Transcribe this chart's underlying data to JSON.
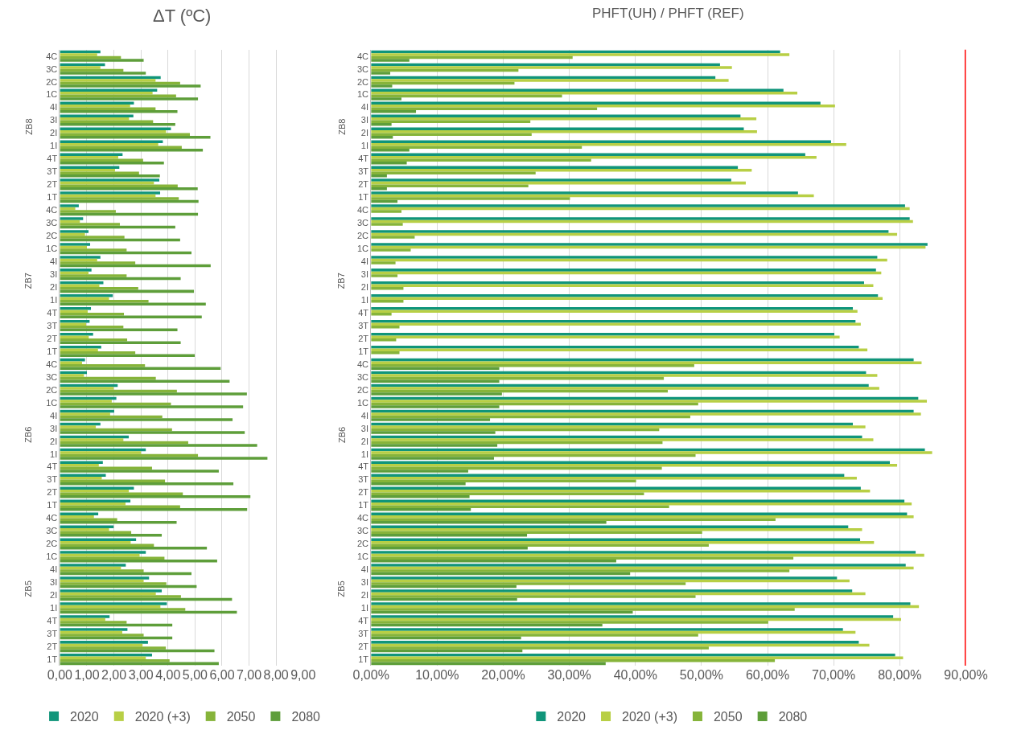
{
  "chart_data": [
    {
      "type": "bar",
      "orientation": "horizontal",
      "title": "ΔT (ºC)",
      "categories": [
        "4C",
        "3C",
        "2C",
        "1C",
        "4I",
        "3I",
        "2I",
        "1I",
        "4T",
        "3T",
        "2T",
        "1T",
        "4C",
        "3C",
        "2C",
        "1C",
        "4I",
        "3I",
        "2I",
        "1I",
        "4T",
        "3T",
        "2T",
        "1T",
        "4C",
        "3C",
        "2C",
        "1C",
        "4I",
        "3I",
        "2I",
        "1I",
        "4T",
        "3T",
        "2T",
        "1T",
        "4C",
        "3C",
        "2C",
        "1C",
        "4I",
        "3I",
        "2I",
        "1I",
        "4T",
        "3T",
        "2T",
        "1T"
      ],
      "annotations": [
        "ZB8",
        "ZB7",
        "ZB6",
        "ZB5"
      ],
      "series": [
        {
          "name": "2020",
          "color": "#10957a",
          "values": [
            1.5,
            1.67,
            3.73,
            3.6,
            2.74,
            2.72,
            4.11,
            3.81,
            2.32,
            2.2,
            3.68,
            3.71,
            0.7,
            0.86,
            1.06,
            1.12,
            1.5,
            1.17,
            1.61,
            1.96,
            1.15,
            1.1,
            1.23,
            1.53,
            0.93,
            1.0,
            2.14,
            2.09,
            2.01,
            1.5,
            2.55,
            3.18,
            1.59,
            1.7,
            2.74,
            2.61,
            1.42,
            1.99,
            2.82,
            3.18,
            2.44,
            3.3,
            3.77,
            3.96,
            1.84,
            2.5,
            3.26,
            3.41
          ]
        },
        {
          "name": "2020 (+3)",
          "color": "#b8cf45",
          "values": [
            1.38,
            1.5,
            3.54,
            3.43,
            2.6,
            2.56,
            3.93,
            3.64,
            2.16,
            2.04,
            3.48,
            3.54,
            0.57,
            0.74,
            0.93,
            1.0,
            1.38,
            1.06,
            1.46,
            1.82,
            1.03,
            0.97,
            1.07,
            1.41,
            0.82,
            0.89,
            1.99,
            1.92,
            1.86,
            1.33,
            2.35,
            3.0,
            1.44,
            1.55,
            2.55,
            2.43,
            1.26,
            1.82,
            2.62,
            2.95,
            2.26,
            3.1,
            3.55,
            3.72,
            1.68,
            2.31,
            3.06,
            3.18
          ]
        },
        {
          "name": "2050",
          "color": "#86b43a",
          "values": [
            2.26,
            2.35,
            4.45,
            4.3,
            3.54,
            3.45,
            4.81,
            4.51,
            3.08,
            2.93,
            4.36,
            4.4,
            2.07,
            2.22,
            2.39,
            2.47,
            2.79,
            2.47,
            2.9,
            3.28,
            2.37,
            2.35,
            2.49,
            2.79,
            3.15,
            3.55,
            4.33,
            4.11,
            3.79,
            4.15,
            4.75,
            5.11,
            3.41,
            3.89,
            4.55,
            4.45,
            2.12,
            2.64,
            3.48,
            3.87,
            3.1,
            3.94,
            4.48,
            4.64,
            2.47,
            3.1,
            3.92,
            4.06
          ]
        },
        {
          "name": "2080",
          "color": "#5e9e3a",
          "values": [
            3.1,
            3.18,
            5.21,
            5.11,
            4.35,
            4.27,
            5.57,
            5.29,
            3.85,
            3.7,
            5.1,
            5.13,
            5.11,
            4.27,
            4.45,
            4.87,
            5.58,
            4.47,
            4.96,
            5.4,
            5.25,
            4.35,
            4.47,
            4.99,
            5.95,
            6.28,
            6.92,
            6.78,
            6.39,
            6.84,
            7.3,
            7.68,
            5.88,
            6.42,
            7.05,
            6.93,
            4.32,
            3.77,
            5.44,
            5.82,
            4.87,
            5.06,
            6.37,
            6.55,
            4.16,
            4.16,
            5.72,
            5.88
          ]
        }
      ],
      "xlim": [
        0,
        9
      ],
      "xticks": [
        {
          "value": 0,
          "label": "0,00"
        },
        {
          "value": 1,
          "label": "1,00"
        },
        {
          "value": 2,
          "label": "2,00"
        },
        {
          "value": 3,
          "label": "3,00"
        },
        {
          "value": 4,
          "label": "4,00"
        },
        {
          "value": 5,
          "label": "5,00"
        },
        {
          "value": 6,
          "label": "6,00"
        },
        {
          "value": 7,
          "label": "7,00"
        },
        {
          "value": 8,
          "label": "8,00"
        },
        {
          "value": 9,
          "label": "9,00"
        }
      ],
      "grid": "x",
      "legend": "bottom"
    },
    {
      "type": "bar",
      "orientation": "horizontal",
      "title": "PHFT(UH) / PHFT (REF)",
      "categories": [
        "4C",
        "3C",
        "2C",
        "1C",
        "4I",
        "3I",
        "2I",
        "1I",
        "4T",
        "3T",
        "2T",
        "1T",
        "4C",
        "3C",
        "2C",
        "1C",
        "4I",
        "3I",
        "2I",
        "1I",
        "4T",
        "3T",
        "2T",
        "1T",
        "4C",
        "3C",
        "2C",
        "1C",
        "4I",
        "3I",
        "2I",
        "1I",
        "4T",
        "3T",
        "2T",
        "1T",
        "4C",
        "3C",
        "2C",
        "1C",
        "4I",
        "3I",
        "2I",
        "1I",
        "4T",
        "3T",
        "2T",
        "1T"
      ],
      "annotations": [
        "ZB8",
        "ZB7",
        "ZB6",
        "ZB5"
      ],
      "series": [
        {
          "name": "2020",
          "color": "#10957a",
          "values": [
            61.9,
            52.8,
            52.1,
            62.4,
            68.0,
            55.9,
            56.4,
            69.6,
            65.7,
            55.5,
            54.5,
            64.6,
            80.8,
            81.5,
            78.3,
            84.2,
            76.6,
            76.4,
            74.6,
            76.7,
            72.9,
            73.3,
            70.1,
            73.8,
            82.1,
            74.9,
            75.3,
            82.8,
            82.1,
            72.9,
            74.3,
            83.8,
            78.5,
            71.6,
            74.1,
            80.7,
            81.1,
            72.2,
            74.0,
            82.4,
            80.9,
            70.5,
            72.8,
            81.6,
            79.0,
            71.4,
            73.8,
            79.3
          ]
        },
        {
          "name": "2020 (+3)",
          "color": "#b8cf45",
          "values": [
            63.3,
            54.6,
            54.1,
            64.5,
            70.2,
            58.3,
            58.4,
            71.9,
            67.4,
            57.6,
            56.7,
            67.0,
            81.5,
            82.0,
            79.6,
            83.9,
            78.1,
            77.2,
            76.0,
            77.4,
            73.6,
            74.1,
            70.9,
            75.1,
            83.3,
            76.6,
            76.9,
            84.1,
            83.2,
            74.8,
            76.0,
            84.9,
            79.6,
            73.5,
            75.5,
            81.8,
            82.1,
            74.3,
            76.1,
            83.7,
            82.1,
            72.4,
            74.8,
            82.9,
            80.2,
            73.3,
            75.4,
            80.5
          ]
        },
        {
          "name": "2050",
          "color": "#86b43a",
          "values": [
            30.5,
            22.3,
            21.7,
            28.9,
            34.2,
            24.1,
            24.3,
            31.9,
            33.3,
            24.9,
            23.8,
            30.1,
            4.6,
            4.8,
            6.6,
            6.0,
            3.7,
            4.0,
            4.9,
            4.9,
            3.1,
            4.3,
            3.8,
            4.3,
            48.9,
            44.3,
            44.9,
            49.5,
            48.3,
            43.6,
            44.1,
            49.1,
            44.0,
            40.1,
            41.3,
            45.1,
            61.2,
            50.1,
            51.1,
            63.9,
            63.3,
            47.6,
            49.1,
            64.1,
            60.1,
            49.5,
            51.1,
            61.1
          ]
        },
        {
          "name": "2080",
          "color": "#5e9e3a",
          "values": [
            5.8,
            2.9,
            3.2,
            4.6,
            6.8,
            3.1,
            3.3,
            5.8,
            5.4,
            2.4,
            2.4,
            4.0,
            null,
            null,
            null,
            null,
            null,
            null,
            null,
            null,
            null,
            null,
            null,
            null,
            19.4,
            19.4,
            19.8,
            19.4,
            18.0,
            18.8,
            19.1,
            18.6,
            14.7,
            14.3,
            14.9,
            15.1,
            35.6,
            23.6,
            23.7,
            37.1,
            39.2,
            22.0,
            22.1,
            39.6,
            35.0,
            22.7,
            22.9,
            35.5
          ]
        }
      ],
      "xlim": [
        0,
        90
      ],
      "xticks": [
        {
          "value": 0,
          "label": "0,00%"
        },
        {
          "value": 10,
          "label": "10,00%"
        },
        {
          "value": 20,
          "label": "20,00%"
        },
        {
          "value": 30,
          "label": "30,00%"
        },
        {
          "value": 40,
          "label": "40,00%"
        },
        {
          "value": 50,
          "label": "50,00%"
        },
        {
          "value": 60,
          "label": "60,00%"
        },
        {
          "value": 70,
          "label": "70,00%"
        },
        {
          "value": 80,
          "label": "80,00%"
        },
        {
          "value": 90,
          "label": "90,00%"
        }
      ],
      "ref_lines": [
        {
          "axis": "x",
          "value": 90,
          "color": "#ff0000"
        }
      ],
      "grid": "x",
      "legend": "bottom"
    }
  ]
}
